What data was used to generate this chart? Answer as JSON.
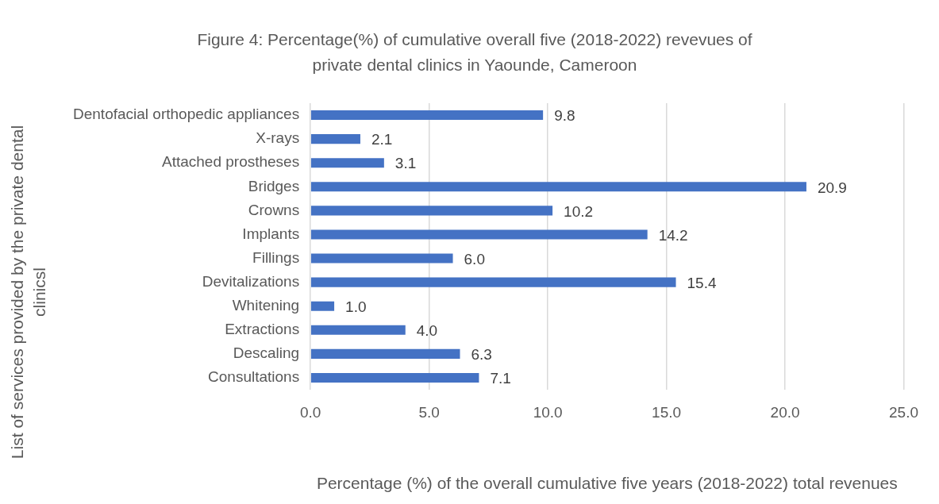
{
  "chart_data": {
    "type": "bar",
    "orientation": "horizontal",
    "title": "Figure 4: Percentage(%) of cumulative overall five (2018-2022) revevues of private dental clinics in Yaounde, Cameroon",
    "xlabel": "Percentage (%) of the overall cumulative five years (2018-2022) total revenues",
    "ylabel": "List of services provided by the private dental clinicsl",
    "categories": [
      "Dentofacial orthopedic appliances",
      "X-rays",
      "Attached prostheses",
      "Bridges",
      "Crowns",
      "Implants",
      "Fillings",
      "Devitalizations",
      "Whitening",
      "Extractions",
      "Descaling",
      "Consultations"
    ],
    "values": [
      9.8,
      2.1,
      3.1,
      20.9,
      10.2,
      14.2,
      6.0,
      15.4,
      1.0,
      4.0,
      6.3,
      7.1
    ],
    "value_labels": [
      "9.8",
      "2.1",
      "3.1",
      "20.9",
      "10.2",
      "14.2",
      "6.0",
      "15.4",
      "1.0",
      "4.0",
      "6.3",
      "7.1"
    ],
    "color": "#4472c4",
    "xlim": [
      0,
      25
    ],
    "xticks": [
      {
        "value": 0,
        "label": "0.0"
      },
      {
        "value": 5,
        "label": "5.0"
      },
      {
        "value": 10,
        "label": "10.0"
      },
      {
        "value": 15,
        "label": "15.0"
      },
      {
        "value": 20,
        "label": "20.0"
      },
      {
        "value": 25,
        "label": "25.0"
      }
    ],
    "grid": "x",
    "legend": false
  }
}
